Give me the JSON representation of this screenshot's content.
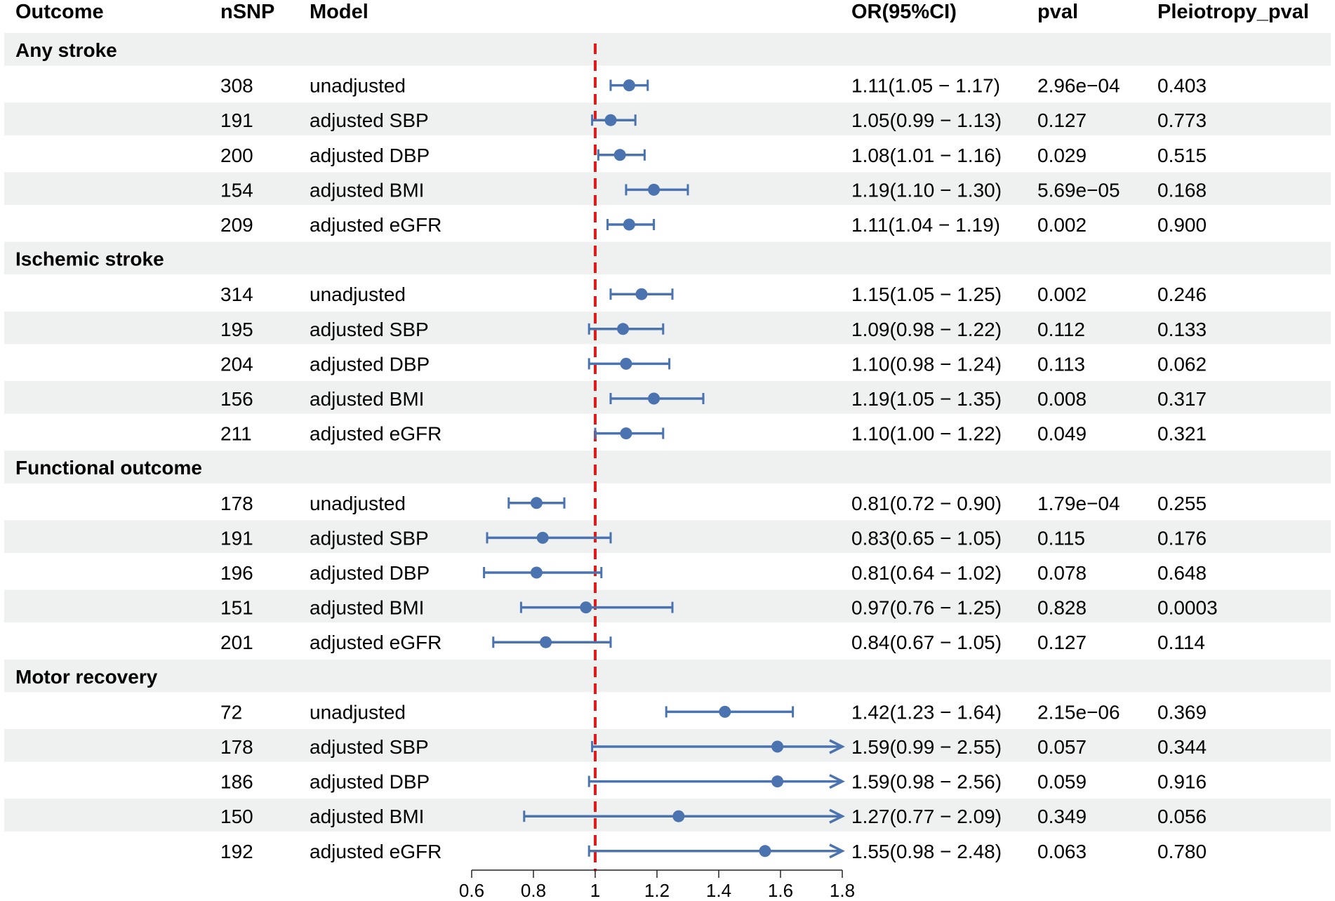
{
  "chart_data": {
    "type": "forest",
    "headers": {
      "outcome": "Outcome",
      "nsnp": "nSNP",
      "model": "Model",
      "or": "OR(95%CI)",
      "pval": "pval",
      "pleio": "Pleiotropy_pval"
    },
    "xaxis": {
      "min": 0.6,
      "max": 1.8,
      "ticks": [
        0.6,
        0.8,
        1.0,
        1.2,
        1.4,
        1.6,
        1.8
      ],
      "tick_labels": [
        "0.6",
        "0.8",
        "1",
        "1.2",
        "1.4",
        "1.6",
        "1.8"
      ],
      "reference_line": 1.0
    },
    "colors": {
      "point": "#4a73b0",
      "reference": "#e21a1a",
      "band": "#eef1ef"
    },
    "groups": [
      {
        "name": "Any stroke",
        "rows": [
          {
            "nsnp": "308",
            "model": "unadjusted",
            "or": 1.11,
            "lo": 1.05,
            "hi": 1.17,
            "or_text": "1.11(1.05 − 1.17)",
            "pval": "2.96e−04",
            "pleio": "0.403"
          },
          {
            "nsnp": "191",
            "model": "adjusted SBP",
            "or": 1.05,
            "lo": 0.99,
            "hi": 1.13,
            "or_text": "1.05(0.99 − 1.13)",
            "pval": "0.127",
            "pleio": "0.773"
          },
          {
            "nsnp": "200",
            "model": "adjusted DBP",
            "or": 1.08,
            "lo": 1.01,
            "hi": 1.16,
            "or_text": "1.08(1.01 − 1.16)",
            "pval": "0.029",
            "pleio": "0.515"
          },
          {
            "nsnp": "154",
            "model": "adjusted BMI",
            "or": 1.19,
            "lo": 1.1,
            "hi": 1.3,
            "or_text": "1.19(1.10 − 1.30)",
            "pval": "5.69e−05",
            "pleio": "0.168"
          },
          {
            "nsnp": "209",
            "model": "adjusted eGFR",
            "or": 1.11,
            "lo": 1.04,
            "hi": 1.19,
            "or_text": "1.11(1.04 − 1.19)",
            "pval": "0.002",
            "pleio": "0.900"
          }
        ]
      },
      {
        "name": "Ischemic stroke",
        "rows": [
          {
            "nsnp": "314",
            "model": "unadjusted",
            "or": 1.15,
            "lo": 1.05,
            "hi": 1.25,
            "or_text": "1.15(1.05 − 1.25)",
            "pval": "0.002",
            "pleio": "0.246"
          },
          {
            "nsnp": "195",
            "model": "adjusted SBP",
            "or": 1.09,
            "lo": 0.98,
            "hi": 1.22,
            "or_text": "1.09(0.98 − 1.22)",
            "pval": "0.112",
            "pleio": "0.133"
          },
          {
            "nsnp": "204",
            "model": "adjusted DBP",
            "or": 1.1,
            "lo": 0.98,
            "hi": 1.24,
            "or_text": "1.10(0.98 − 1.24)",
            "pval": "0.113",
            "pleio": "0.062"
          },
          {
            "nsnp": "156",
            "model": "adjusted BMI",
            "or": 1.19,
            "lo": 1.05,
            "hi": 1.35,
            "or_text": "1.19(1.05 − 1.35)",
            "pval": "0.008",
            "pleio": "0.317"
          },
          {
            "nsnp": "211",
            "model": "adjusted eGFR",
            "or": 1.1,
            "lo": 1.0,
            "hi": 1.22,
            "or_text": "1.10(1.00 − 1.22)",
            "pval": "0.049",
            "pleio": "0.321"
          }
        ]
      },
      {
        "name": "Functional outcome",
        "rows": [
          {
            "nsnp": "178",
            "model": "unadjusted",
            "or": 0.81,
            "lo": 0.72,
            "hi": 0.9,
            "or_text": "0.81(0.72 − 0.90)",
            "pval": "1.79e−04",
            "pleio": "0.255"
          },
          {
            "nsnp": "191",
            "model": "adjusted SBP",
            "or": 0.83,
            "lo": 0.65,
            "hi": 1.05,
            "or_text": "0.83(0.65 − 1.05)",
            "pval": "0.115",
            "pleio": "0.176"
          },
          {
            "nsnp": "196",
            "model": "adjusted DBP",
            "or": 0.81,
            "lo": 0.64,
            "hi": 1.02,
            "or_text": "0.81(0.64 − 1.02)",
            "pval": "0.078",
            "pleio": "0.648"
          },
          {
            "nsnp": "151",
            "model": "adjusted BMI",
            "or": 0.97,
            "lo": 0.76,
            "hi": 1.25,
            "or_text": "0.97(0.76 − 1.25)",
            "pval": "0.828",
            "pleio": "0.0003"
          },
          {
            "nsnp": "201",
            "model": "adjusted eGFR",
            "or": 0.84,
            "lo": 0.67,
            "hi": 1.05,
            "or_text": "0.84(0.67 − 1.05)",
            "pval": "0.127",
            "pleio": "0.114"
          }
        ]
      },
      {
        "name": "Motor recovery",
        "rows": [
          {
            "nsnp": "72",
            "model": "unadjusted",
            "or": 1.42,
            "lo": 1.23,
            "hi": 1.64,
            "or_text": "1.42(1.23 − 1.64)",
            "pval": "2.15e−06",
            "pleio": "0.369"
          },
          {
            "nsnp": "178",
            "model": "adjusted SBP",
            "or": 1.59,
            "lo": 0.99,
            "hi": 2.55,
            "or_text": "1.59(0.99 − 2.55)",
            "pval": "0.057",
            "pleio": "0.344"
          },
          {
            "nsnp": "186",
            "model": "adjusted DBP",
            "or": 1.59,
            "lo": 0.98,
            "hi": 2.56,
            "or_text": "1.59(0.98 − 2.56)",
            "pval": "0.059",
            "pleio": "0.916"
          },
          {
            "nsnp": "150",
            "model": "adjusted BMI",
            "or": 1.27,
            "lo": 0.77,
            "hi": 2.09,
            "or_text": "1.27(0.77 − 2.09)",
            "pval": "0.349",
            "pleio": "0.056"
          },
          {
            "nsnp": "192",
            "model": "adjusted eGFR",
            "or": 1.55,
            "lo": 0.98,
            "hi": 2.48,
            "or_text": "1.55(0.98 − 2.48)",
            "pval": "0.063",
            "pleio": "0.780"
          }
        ]
      }
    ]
  }
}
